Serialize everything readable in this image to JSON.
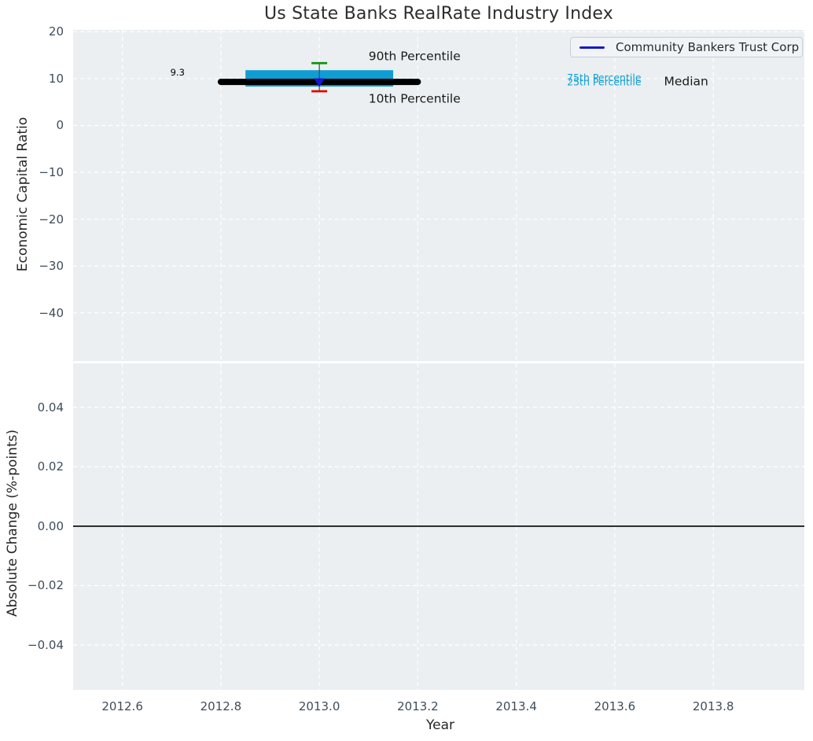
{
  "figure": {
    "title": "Us State Banks RealRate Industry Index",
    "colors": {
      "panel_bg": "#ebeff1",
      "grid": "#ffffff",
      "tick_label": "#3f4d5a",
      "text": "#262626",
      "iqr_band": "#0f9ed3",
      "median_line": "#000000",
      "p90_cap": "#0c930c",
      "p10_cap": "#e00000",
      "whisker": "#444444",
      "company_marker": "#1717cf",
      "legend_line": "#1717cf",
      "zero_line": "#000000"
    }
  },
  "legend": {
    "label": "Community Bankers Trust Corp"
  },
  "chart_data": [
    {
      "type": "line",
      "panel": "top",
      "title": "Us State Banks RealRate Industry Index",
      "ylabel": "Economic Capital Ratio",
      "xlim": [
        2012.5,
        2013.985
      ],
      "ylim": [
        -50.3,
        20.4
      ],
      "xticks": [
        2012.6,
        2012.8,
        2013.0,
        2013.2,
        2013.4,
        2013.6,
        2013.8
      ],
      "yticks": [
        20,
        10,
        0,
        -10,
        -20,
        -30,
        -40
      ],
      "ytick_labels": [
        "20",
        "10",
        "0",
        "−10",
        "−20",
        "−30",
        "−40"
      ],
      "grid": "white-dashed",
      "legend_position": "upper-right",
      "series": [
        {
          "name": "25th-75th Percentile Band",
          "type": "bar",
          "color": "#0f9ed3",
          "x_center": 2013.0,
          "x_width": 0.3,
          "y_low": 8.3,
          "y_high": 11.8
        },
        {
          "name": "Median",
          "type": "line",
          "color": "#000000",
          "linewidth": 8,
          "x": [
            2012.8,
            2013.2
          ],
          "y": [
            9.3,
            9.3
          ]
        },
        {
          "name": "Percentile Whisker",
          "type": "vline",
          "color": "#444444",
          "x": 2013.0,
          "y": [
            7.3,
            13.3
          ]
        },
        {
          "name": "90th Percentile",
          "type": "whisker-cap",
          "color": "#0c930c",
          "x": 2013.0,
          "y": 13.3
        },
        {
          "name": "10th Percentile",
          "type": "whisker-cap",
          "color": "#e00000",
          "x": 2013.0,
          "y": 7.3
        },
        {
          "name": "Community Bankers Trust Corp",
          "type": "marker-triangle-down",
          "color": "#1717cf",
          "x": 2013.0,
          "y": 9.3
        }
      ],
      "annotations": [
        {
          "id": "value-label",
          "text": "9.3",
          "x": 2012.712,
          "y": 11.3,
          "anchor": "middle",
          "color": "#000000",
          "size": 11.5
        },
        {
          "id": "p90-label",
          "text": "90th Percentile",
          "x": 2013.1,
          "y": 14.8,
          "anchor": "start",
          "color": "#1a1a1a",
          "size": 15.5
        },
        {
          "id": "p10-label",
          "text": "10th Percentile",
          "x": 2013.1,
          "y": 5.7,
          "anchor": "start",
          "color": "#1a1a1a",
          "size": 15.5
        },
        {
          "id": "p75-label",
          "text": "75th Percentile",
          "x": 2013.503,
          "y": 10.2,
          "anchor": "start",
          "color": "#0f9ed3",
          "size": 12.5
        },
        {
          "id": "p25-label",
          "text": "25th Percentile",
          "x": 2013.503,
          "y": 9.3,
          "anchor": "start",
          "color": "#0f9ed3",
          "size": 12.5
        },
        {
          "id": "median-label",
          "text": "Median",
          "x": 2013.7,
          "y": 9.4,
          "anchor": "start",
          "color": "#1a1a1a",
          "size": 15.5
        }
      ]
    },
    {
      "type": "line",
      "panel": "bottom",
      "ylabel": "Absolute Change (%-points)",
      "xlabel": "Year",
      "xlim": [
        2012.5,
        2013.985
      ],
      "ylim": [
        -0.0551,
        0.0548
      ],
      "xticks": [
        2012.6,
        2012.8,
        2013.0,
        2013.2,
        2013.4,
        2013.6,
        2013.8
      ],
      "xtick_labels": [
        "2012.6",
        "2012.8",
        "2013.0",
        "2013.2",
        "2013.4",
        "2013.6",
        "2013.8"
      ],
      "yticks": [
        0.04,
        0.02,
        0.0,
        -0.02,
        -0.04
      ],
      "ytick_labels": [
        "0.04",
        "0.02",
        "0.00",
        "−0.02",
        "−0.04"
      ],
      "grid": "white-dashed",
      "series": [
        {
          "name": "Zero Line",
          "type": "hline",
          "color": "#000000",
          "y": 0.0,
          "linewidth": 1.6
        }
      ]
    }
  ]
}
